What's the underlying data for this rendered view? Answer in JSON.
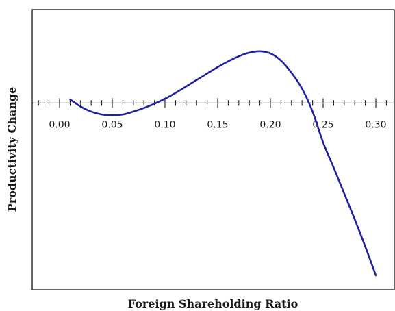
{
  "chart_data": {
    "type": "line",
    "title": "",
    "xlabel": "Foreign Shareholding Ratio",
    "ylabel": "Productivity Change",
    "x_ticks": [
      0.0,
      0.05,
      0.1,
      0.15,
      0.2,
      0.25,
      0.3
    ],
    "x_tick_labels": [
      "0.00",
      "0.05",
      "0.10",
      "0.15",
      "0.20",
      "0.25",
      "0.30"
    ],
    "x_minor_step": 0.01,
    "xlim": [
      -0.015,
      0.31
    ],
    "ylim": [
      -2.6,
      1.3
    ],
    "grid": false,
    "series": [
      {
        "color": "#1f1fa0",
        "x": [
          0.01,
          0.02,
          0.03,
          0.04,
          0.05,
          0.06,
          0.07,
          0.08,
          0.09,
          0.1,
          0.11,
          0.12,
          0.13,
          0.14,
          0.15,
          0.16,
          0.17,
          0.18,
          0.19,
          0.2,
          0.21,
          0.22,
          0.23,
          0.24,
          0.25,
          0.26,
          0.27,
          0.28,
          0.29,
          0.3
        ],
        "y": [
          0.05,
          -0.05,
          -0.12,
          -0.16,
          -0.17,
          -0.16,
          -0.12,
          -0.07,
          -0.01,
          0.06,
          0.14,
          0.23,
          0.32,
          0.41,
          0.5,
          0.58,
          0.65,
          0.7,
          0.72,
          0.69,
          0.59,
          0.42,
          0.2,
          -0.12,
          -0.55,
          -0.9,
          -1.26,
          -1.62,
          -2.0,
          -2.4
        ]
      }
    ]
  }
}
